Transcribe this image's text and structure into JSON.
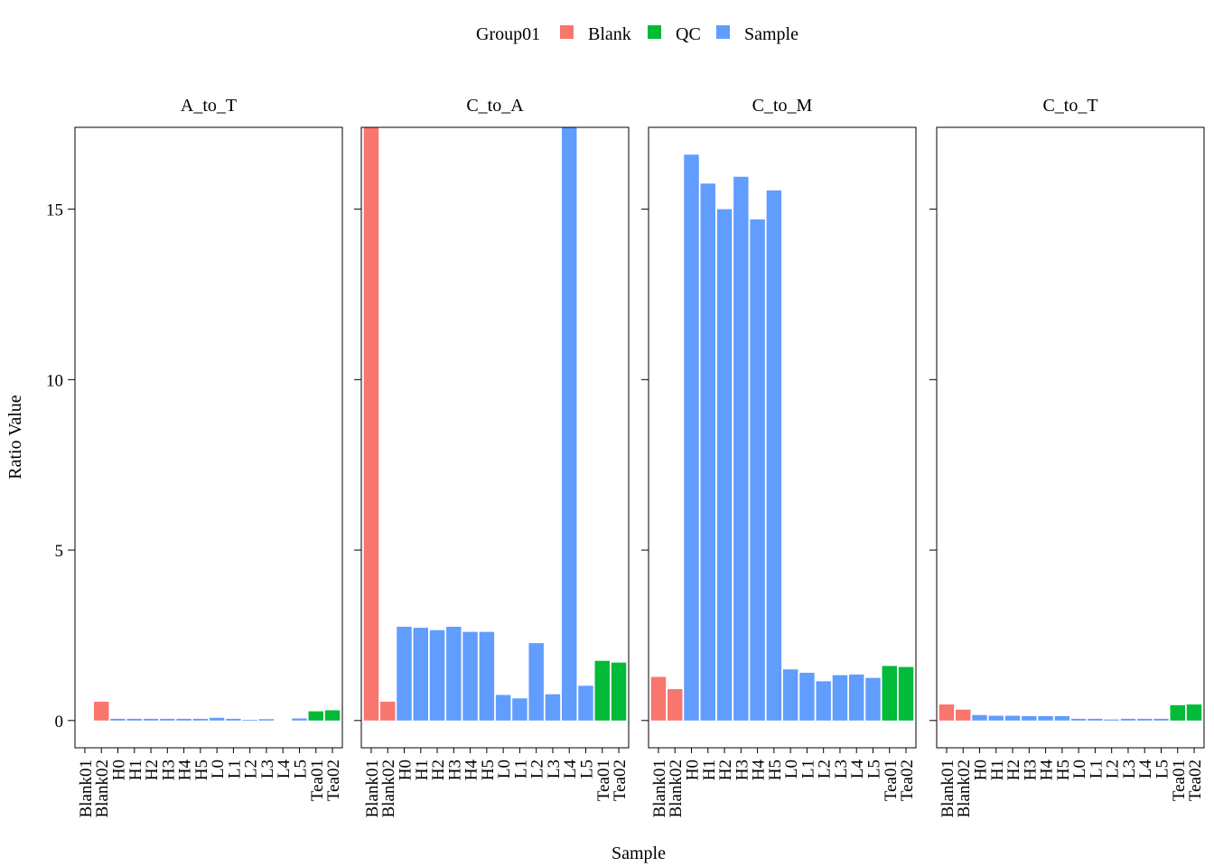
{
  "chart_data": {
    "type": "bar",
    "xlabel": "Sample",
    "ylabel": "Ratio Value",
    "legend": {
      "title": "Group01",
      "placement": "top",
      "items": [
        {
          "label": "Blank",
          "color": "#F8766D"
        },
        {
          "label": "QC",
          "color": "#00BA38"
        },
        {
          "label": "Sample",
          "color": "#619CFF"
        }
      ]
    },
    "ylim": [
      -0.8,
      17.4
    ],
    "yticks": [
      0,
      5,
      10,
      15
    ],
    "ytick_labels": [
      "0",
      "5",
      "10",
      "15"
    ],
    "categories": [
      "Blank01",
      "Blank02",
      "H0",
      "H1",
      "H2",
      "H3",
      "H4",
      "H5",
      "L0",
      "L1",
      "L2",
      "L3",
      "L4",
      "L5",
      "Tea01",
      "Tea02"
    ],
    "groups": [
      "Blank",
      "Blank",
      "Sample",
      "Sample",
      "Sample",
      "Sample",
      "Sample",
      "Sample",
      "Sample",
      "Sample",
      "Sample",
      "Sample",
      "Sample",
      "Sample",
      "QC",
      "QC"
    ],
    "facets": [
      {
        "title": "A_to_T",
        "values": [
          0,
          0.55,
          0.05,
          0.05,
          0.05,
          0.05,
          0.05,
          0.05,
          0.08,
          0.05,
          0.02,
          0.04,
          0,
          0.06,
          0.27,
          0.3
        ]
      },
      {
        "title": "C_to_A",
        "values": [
          17.4,
          0.55,
          2.75,
          2.72,
          2.65,
          2.75,
          2.6,
          2.6,
          0.75,
          0.65,
          2.27,
          0.77,
          17.4,
          1.02,
          1.75,
          1.7
        ]
      },
      {
        "title": "C_to_M",
        "values": [
          1.28,
          0.92,
          16.6,
          15.75,
          15.0,
          15.95,
          14.7,
          15.55,
          1.5,
          1.4,
          1.15,
          1.33,
          1.35,
          1.25,
          1.6,
          1.57
        ]
      },
      {
        "title": "C_to_T",
        "values": [
          0.47,
          0.32,
          0.16,
          0.14,
          0.14,
          0.13,
          0.13,
          0.13,
          0.05,
          0.05,
          0.03,
          0.05,
          0.05,
          0.05,
          0.45,
          0.47
        ]
      }
    ]
  }
}
